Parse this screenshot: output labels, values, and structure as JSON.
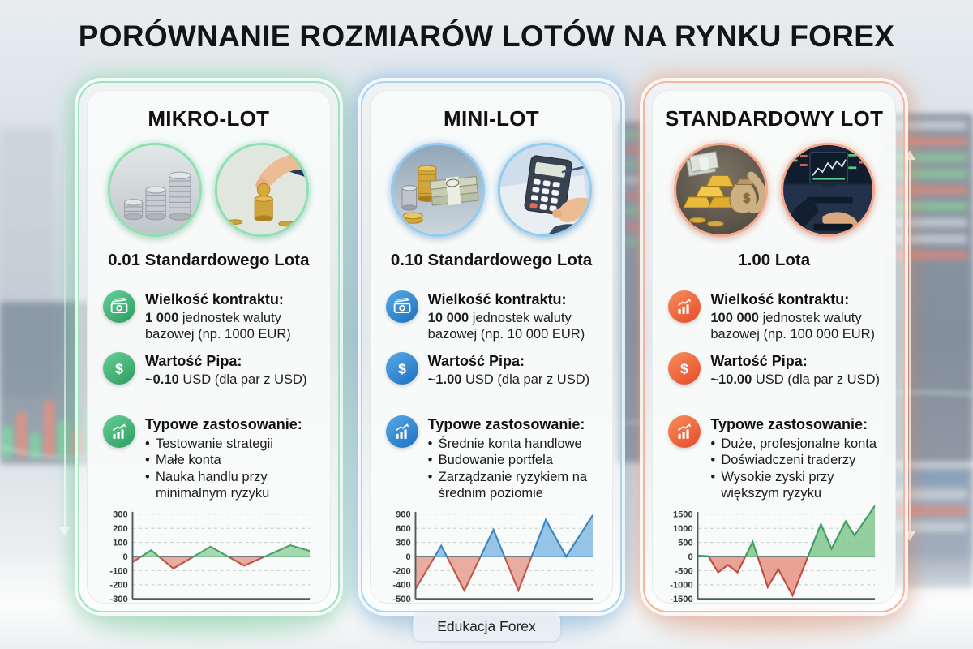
{
  "title": "PORÓWNANIE ROZMIARÓW LOTÓW NA RYNKU FOREX",
  "footer": "Edukacja Forex",
  "cards": [
    {
      "title": "MIKRO-LOT",
      "size_label": "0.01 Standardowego Lota",
      "accent_color": "#2c9c61",
      "border_color": "#9fe3bd",
      "images": [
        "coin-stacks",
        "hand-placing-coin"
      ],
      "contract_icon": "banknote-icon",
      "contract_title": "Wielkość kontraktu:",
      "contract_bold": "1 000",
      "contract_rest": " jednostek waluty bazowej (np. 1000 EUR)",
      "pip_icon": "dollar-icon",
      "pip_title": "Wartość Pipa:",
      "pip_bold": "~0.10",
      "pip_rest": " USD (dla par z USD)",
      "usage_icon": "chart-icon",
      "usage_title": "Typowe zastosowanie:",
      "usage_items": [
        "Testowanie strategii",
        "Małe konta",
        "Nauka handlu przy minimalnym ryzyku"
      ]
    },
    {
      "title": "MINI-LOT",
      "size_label": "0.10 Standardowego Lota",
      "accent_color": "#1d6fc0",
      "border_color": "#a6d4f5",
      "images": [
        "coins-and-banknotes",
        "calculator-hands"
      ],
      "contract_icon": "banknote-icon",
      "contract_title": "Wielkość kontraktu:",
      "contract_bold": "10 000",
      "contract_rest": " jednostek waluty bazowej (np. 10 000 EUR)",
      "pip_icon": "dollar-icon",
      "pip_title": "Wartość Pipa:",
      "pip_bold": "~1.00",
      "pip_rest": " USD (dla par z USD)",
      "usage_icon": "chart-icon",
      "usage_title": "Typowe zastosowanie:",
      "usage_items": [
        "Średnie konta handlowe",
        "Budowanie portfela",
        "Zarządzanie ryzykiem na średnim poziomie"
      ]
    },
    {
      "title": "STANDARDOWY LOT",
      "size_label": "1.00 Lota",
      "accent_color": "#e7492b",
      "border_color": "#f6b49a",
      "images": [
        "gold-bars-money-bags",
        "trading-desk-screens"
      ],
      "contract_icon": "chart-icon",
      "contract_title": "Wielkość kontraktu:",
      "contract_bold": "100 000",
      "contract_rest": " jednostek waluty bazowej (np. 100 000 EUR)",
      "pip_icon": "dollar-icon",
      "pip_title": "Wartość Pipa:",
      "pip_bold": "~10.00",
      "pip_rest": " USD (dla par z USD)",
      "usage_icon": "chart-icon",
      "usage_title": "Typowe zastosowanie:",
      "usage_items": [
        "Duże, profesjonalne konta",
        "Doświadczeni traderzy",
        "Wysokie zyski przy większym ryzyku"
      ]
    }
  ],
  "chart_data": [
    {
      "type": "area",
      "title": "MIKRO-LOT profit/loss curve",
      "yticks": [
        300,
        200,
        100,
        0,
        -100,
        -200,
        -300
      ],
      "x_range": [
        0,
        10
      ],
      "grid": "dashed",
      "points": [
        [
          0,
          -40
        ],
        [
          1.05,
          45
        ],
        [
          2.3,
          -85
        ],
        [
          4.4,
          70
        ],
        [
          6.3,
          -65
        ],
        [
          8.9,
          80
        ],
        [
          10,
          40
        ]
      ],
      "pos_stroke": "#4da06a",
      "neg_stroke": "#c05448",
      "pos_fill": "#8fd19c",
      "neg_fill": "#e6988b"
    },
    {
      "type": "area",
      "title": "MINI-LOT profit/loss curve",
      "yticks": [
        900,
        600,
        300,
        0,
        -200,
        -400,
        -500
      ],
      "x_range": [
        0,
        10
      ],
      "grid": "dashed",
      "points": [
        [
          0,
          -430
        ],
        [
          1.45,
          230
        ],
        [
          2.75,
          -440
        ],
        [
          4.4,
          570
        ],
        [
          5.8,
          -440
        ],
        [
          7.35,
          780
        ],
        [
          8.5,
          0
        ],
        [
          10,
          880
        ]
      ],
      "pos_stroke": "#3a85c2",
      "neg_stroke": "#bf5a4a",
      "pos_fill": "#7db8e2",
      "neg_fill": "#e6998b"
    },
    {
      "type": "area",
      "title": "STANDARDOWY LOT profit/loss curve",
      "yticks": [
        1500,
        1000,
        500,
        0,
        -500,
        -1000,
        -1500
      ],
      "x_range": [
        0,
        10
      ],
      "grid": "dashed",
      "points": [
        [
          0,
          30
        ],
        [
          0.6,
          10
        ],
        [
          1.15,
          -560
        ],
        [
          1.7,
          -300
        ],
        [
          2.25,
          -560
        ],
        [
          3.1,
          520
        ],
        [
          3.95,
          -1080
        ],
        [
          4.55,
          -450
        ],
        [
          5.35,
          -1380
        ],
        [
          6.95,
          1150
        ],
        [
          7.55,
          270
        ],
        [
          8.35,
          1250
        ],
        [
          8.85,
          750
        ],
        [
          10,
          1800
        ]
      ],
      "pos_stroke": "#3f9e63",
      "neg_stroke": "#c24c3e",
      "pos_fill": "#7ac488",
      "neg_fill": "#e58d7c"
    }
  ]
}
